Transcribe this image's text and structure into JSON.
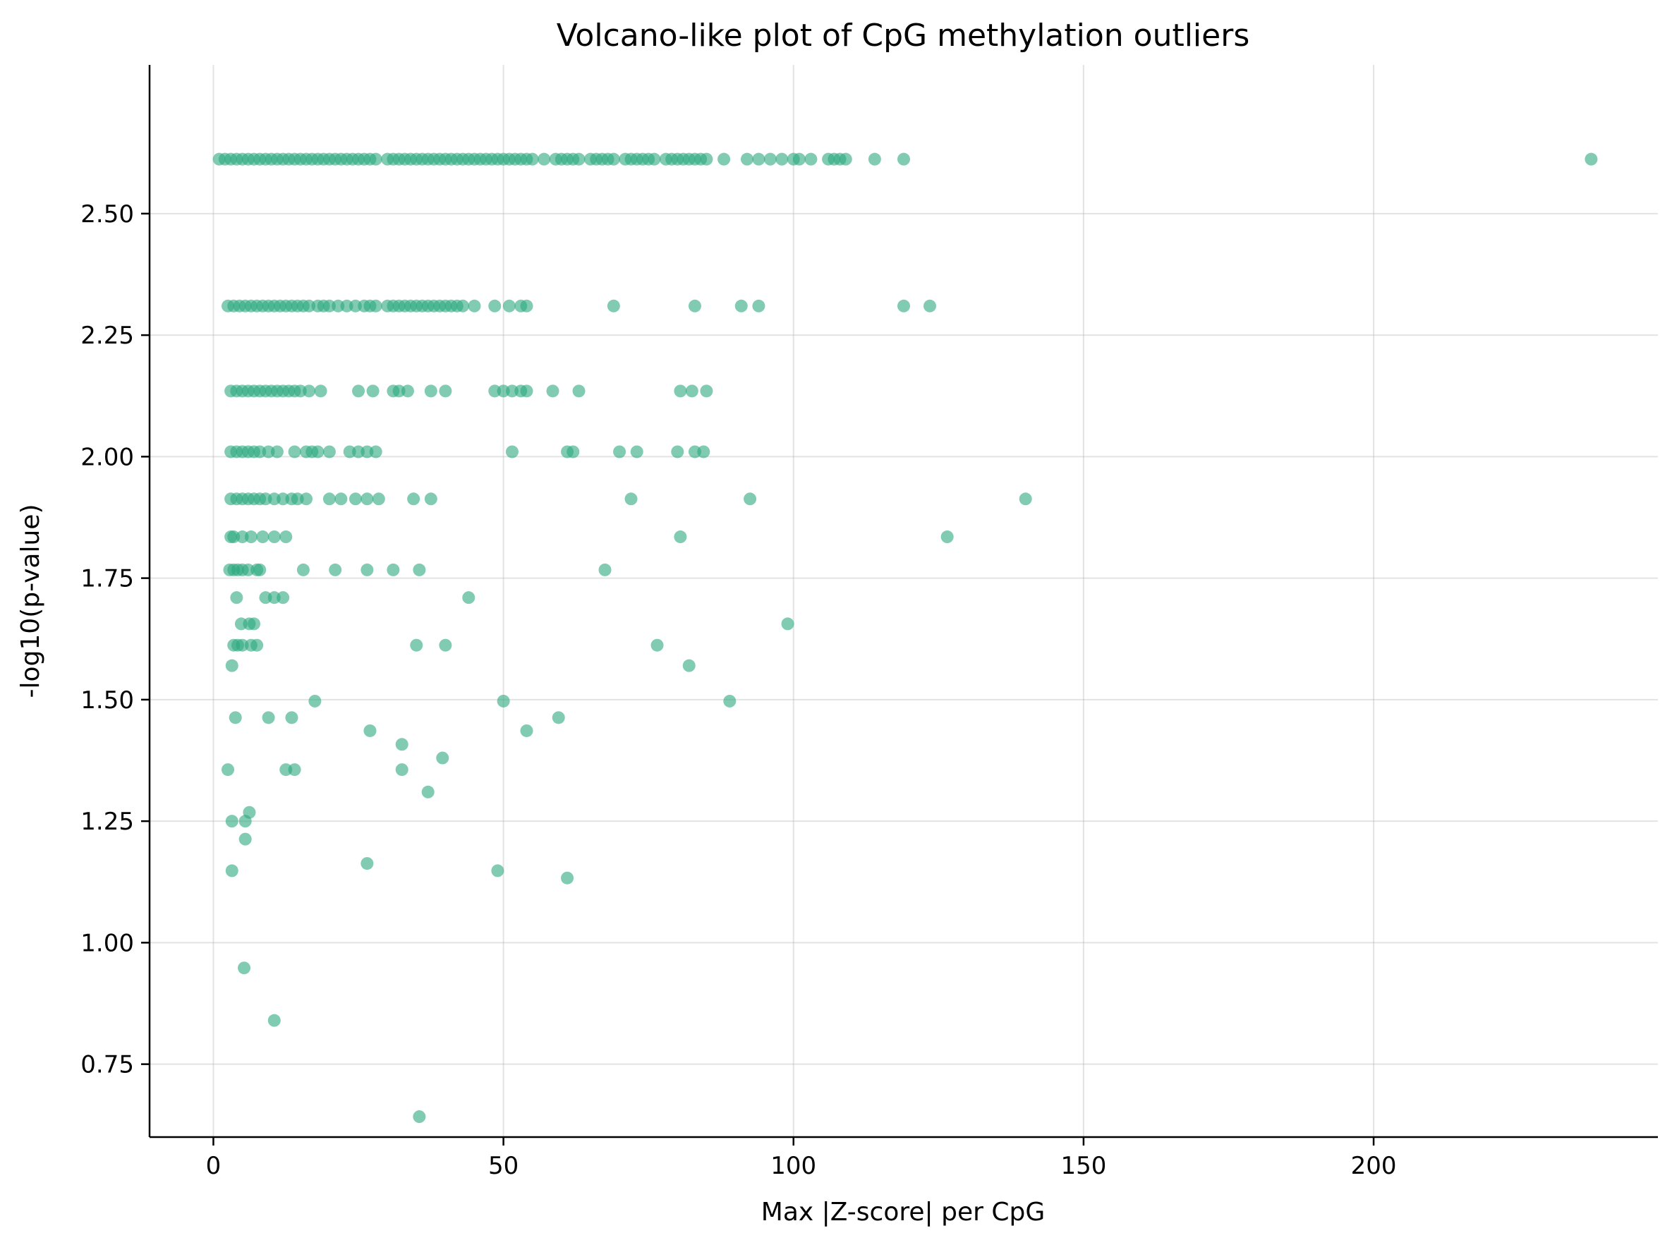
{
  "chart_data": {
    "type": "scatter",
    "title": "Volcano-like plot of CpG methylation outliers",
    "xlabel": "Max |Z-score| per CpG",
    "ylabel": "-log10(p-value)",
    "xlim": [
      -11,
      249
    ],
    "ylim": [
      0.6,
      2.806
    ],
    "xticks": [
      0,
      50,
      100,
      150,
      200
    ],
    "xtick_labels": [
      "0",
      "50",
      "100",
      "150",
      "200"
    ],
    "yticks": [
      0.75,
      1.0,
      1.25,
      1.5,
      1.75,
      2.0,
      2.25,
      2.5
    ],
    "ytick_labels": [
      "0.75",
      "1.00",
      "1.25",
      "1.50",
      "1.75",
      "2.00",
      "2.25",
      "2.50"
    ],
    "grid": true,
    "marker_color": "#2ca87f",
    "marker_alpha": 0.6,
    "series": [
      {
        "points": [
          [
            1,
            2.612
          ],
          [
            2,
            2.612
          ],
          [
            3,
            2.612
          ],
          [
            4,
            2.612
          ],
          [
            5,
            2.612
          ],
          [
            6,
            2.612
          ],
          [
            7,
            2.612
          ],
          [
            8,
            2.612
          ],
          [
            9,
            2.612
          ],
          [
            10,
            2.612
          ],
          [
            11,
            2.612
          ],
          [
            12,
            2.612
          ],
          [
            13,
            2.612
          ],
          [
            14,
            2.612
          ],
          [
            15,
            2.612
          ],
          [
            16,
            2.612
          ],
          [
            17,
            2.612
          ],
          [
            18,
            2.612
          ],
          [
            19,
            2.612
          ],
          [
            20,
            2.612
          ],
          [
            21,
            2.612
          ],
          [
            22,
            2.612
          ],
          [
            23,
            2.612
          ],
          [
            24,
            2.612
          ],
          [
            25,
            2.612
          ],
          [
            26,
            2.612
          ],
          [
            27,
            2.612
          ],
          [
            28,
            2.612
          ],
          [
            30,
            2.612
          ],
          [
            31,
            2.612
          ],
          [
            32,
            2.612
          ],
          [
            33,
            2.612
          ],
          [
            34,
            2.612
          ],
          [
            35,
            2.612
          ],
          [
            36,
            2.612
          ],
          [
            37,
            2.612
          ],
          [
            38,
            2.612
          ],
          [
            39,
            2.612
          ],
          [
            40,
            2.612
          ],
          [
            41,
            2.612
          ],
          [
            42,
            2.612
          ],
          [
            43,
            2.612
          ],
          [
            44,
            2.612
          ],
          [
            45,
            2.612
          ],
          [
            46,
            2.612
          ],
          [
            47,
            2.612
          ],
          [
            48,
            2.612
          ],
          [
            49,
            2.612
          ],
          [
            50,
            2.612
          ],
          [
            51,
            2.612
          ],
          [
            52,
            2.612
          ],
          [
            53,
            2.612
          ],
          [
            54,
            2.612
          ],
          [
            55,
            2.612
          ],
          [
            57,
            2.612
          ],
          [
            59,
            2.612
          ],
          [
            60,
            2.612
          ],
          [
            61,
            2.612
          ],
          [
            62,
            2.612
          ],
          [
            63,
            2.612
          ],
          [
            65,
            2.612
          ],
          [
            66,
            2.612
          ],
          [
            67,
            2.612
          ],
          [
            68,
            2.612
          ],
          [
            69,
            2.612
          ],
          [
            71,
            2.612
          ],
          [
            72,
            2.612
          ],
          [
            73,
            2.612
          ],
          [
            74,
            2.612
          ],
          [
            75,
            2.612
          ],
          [
            76,
            2.612
          ],
          [
            78,
            2.612
          ],
          [
            79,
            2.612
          ],
          [
            80,
            2.612
          ],
          [
            81,
            2.612
          ],
          [
            82,
            2.612
          ],
          [
            83,
            2.612
          ],
          [
            84,
            2.612
          ],
          [
            85,
            2.612
          ],
          [
            88,
            2.612
          ],
          [
            92,
            2.612
          ],
          [
            94,
            2.612
          ],
          [
            96,
            2.612
          ],
          [
            98,
            2.612
          ],
          [
            100,
            2.612
          ],
          [
            101,
            2.612
          ],
          [
            103,
            2.612
          ],
          [
            106,
            2.612
          ],
          [
            107,
            2.612
          ],
          [
            108,
            2.612
          ],
          [
            109,
            2.612
          ],
          [
            114,
            2.612
          ],
          [
            119,
            2.612
          ],
          [
            237.5,
            2.612
          ],
          [
            2.5,
            2.31
          ],
          [
            3.5,
            2.31
          ],
          [
            4.5,
            2.31
          ],
          [
            5.5,
            2.31
          ],
          [
            6.5,
            2.31
          ],
          [
            7.5,
            2.31
          ],
          [
            8.5,
            2.31
          ],
          [
            9.5,
            2.31
          ],
          [
            10.5,
            2.31
          ],
          [
            11.5,
            2.31
          ],
          [
            12.5,
            2.31
          ],
          [
            13.5,
            2.31
          ],
          [
            14.5,
            2.31
          ],
          [
            15.5,
            2.31
          ],
          [
            16.5,
            2.31
          ],
          [
            18,
            2.31
          ],
          [
            19,
            2.31
          ],
          [
            20,
            2.31
          ],
          [
            21.5,
            2.31
          ],
          [
            23,
            2.31
          ],
          [
            24.5,
            2.31
          ],
          [
            26,
            2.31
          ],
          [
            27,
            2.31
          ],
          [
            28,
            2.31
          ],
          [
            30,
            2.31
          ],
          [
            31,
            2.31
          ],
          [
            32,
            2.31
          ],
          [
            33,
            2.31
          ],
          [
            34,
            2.31
          ],
          [
            35,
            2.31
          ],
          [
            36,
            2.31
          ],
          [
            37,
            2.31
          ],
          [
            38,
            2.31
          ],
          [
            39,
            2.31
          ],
          [
            40,
            2.31
          ],
          [
            41,
            2.31
          ],
          [
            42,
            2.31
          ],
          [
            43,
            2.31
          ],
          [
            45,
            2.31
          ],
          [
            48.5,
            2.31
          ],
          [
            51,
            2.31
          ],
          [
            53,
            2.31
          ],
          [
            54,
            2.31
          ],
          [
            69,
            2.31
          ],
          [
            83,
            2.31
          ],
          [
            91,
            2.31
          ],
          [
            94,
            2.31
          ],
          [
            119,
            2.31
          ],
          [
            123.5,
            2.31
          ],
          [
            3,
            2.135
          ],
          [
            4,
            2.135
          ],
          [
            5,
            2.135
          ],
          [
            6,
            2.135
          ],
          [
            7,
            2.135
          ],
          [
            8,
            2.135
          ],
          [
            9,
            2.135
          ],
          [
            10,
            2.135
          ],
          [
            11,
            2.135
          ],
          [
            12,
            2.135
          ],
          [
            13,
            2.135
          ],
          [
            14,
            2.135
          ],
          [
            15,
            2.135
          ],
          [
            16.5,
            2.135
          ],
          [
            18.5,
            2.135
          ],
          [
            25,
            2.135
          ],
          [
            27.5,
            2.135
          ],
          [
            31,
            2.135
          ],
          [
            32,
            2.135
          ],
          [
            33.5,
            2.135
          ],
          [
            37.5,
            2.135
          ],
          [
            40,
            2.135
          ],
          [
            48.5,
            2.135
          ],
          [
            50,
            2.135
          ],
          [
            51.5,
            2.135
          ],
          [
            53,
            2.135
          ],
          [
            54,
            2.135
          ],
          [
            58.5,
            2.135
          ],
          [
            63,
            2.135
          ],
          [
            80.5,
            2.135
          ],
          [
            82.5,
            2.135
          ],
          [
            85,
            2.135
          ],
          [
            3,
            2.01
          ],
          [
            4,
            2.01
          ],
          [
            5,
            2.01
          ],
          [
            6,
            2.01
          ],
          [
            7,
            2.01
          ],
          [
            8,
            2.01
          ],
          [
            9.5,
            2.01
          ],
          [
            11,
            2.01
          ],
          [
            14,
            2.01
          ],
          [
            16,
            2.01
          ],
          [
            17,
            2.01
          ],
          [
            18,
            2.01
          ],
          [
            20,
            2.01
          ],
          [
            23.5,
            2.01
          ],
          [
            25,
            2.01
          ],
          [
            26.5,
            2.01
          ],
          [
            28,
            2.01
          ],
          [
            51.5,
            2.01
          ],
          [
            61,
            2.01
          ],
          [
            62,
            2.01
          ],
          [
            70,
            2.01
          ],
          [
            73,
            2.01
          ],
          [
            80,
            2.01
          ],
          [
            83,
            2.01
          ],
          [
            84.5,
            2.01
          ],
          [
            3,
            1.913
          ],
          [
            4,
            1.913
          ],
          [
            5,
            1.913
          ],
          [
            6,
            1.913
          ],
          [
            7,
            1.913
          ],
          [
            8,
            1.913
          ],
          [
            9,
            1.913
          ],
          [
            10.5,
            1.913
          ],
          [
            12,
            1.913
          ],
          [
            13.5,
            1.913
          ],
          [
            14.5,
            1.913
          ],
          [
            16,
            1.913
          ],
          [
            20,
            1.913
          ],
          [
            22,
            1.913
          ],
          [
            24.5,
            1.913
          ],
          [
            26.5,
            1.913
          ],
          [
            28.5,
            1.913
          ],
          [
            34.5,
            1.913
          ],
          [
            37.5,
            1.913
          ],
          [
            72,
            1.913
          ],
          [
            92.5,
            1.913
          ],
          [
            140,
            1.913
          ],
          [
            3,
            1.835
          ],
          [
            3.5,
            1.835
          ],
          [
            5,
            1.835
          ],
          [
            6.5,
            1.835
          ],
          [
            8.5,
            1.835
          ],
          [
            10.5,
            1.835
          ],
          [
            12.5,
            1.835
          ],
          [
            80.5,
            1.835
          ],
          [
            126.5,
            1.835
          ],
          [
            2.8,
            1.767
          ],
          [
            3.5,
            1.767
          ],
          [
            4.2,
            1.767
          ],
          [
            5,
            1.767
          ],
          [
            6,
            1.767
          ],
          [
            7.5,
            1.767
          ],
          [
            8,
            1.767
          ],
          [
            15.5,
            1.767
          ],
          [
            21,
            1.767
          ],
          [
            26.5,
            1.767
          ],
          [
            31,
            1.767
          ],
          [
            35.5,
            1.767
          ],
          [
            67.5,
            1.767
          ],
          [
            4,
            1.71
          ],
          [
            9,
            1.71
          ],
          [
            10.5,
            1.71
          ],
          [
            12,
            1.71
          ],
          [
            44,
            1.71
          ],
          [
            4.8,
            1.656
          ],
          [
            6.2,
            1.656
          ],
          [
            7,
            1.656
          ],
          [
            99,
            1.656
          ],
          [
            3.5,
            1.612
          ],
          [
            4.2,
            1.612
          ],
          [
            5,
            1.612
          ],
          [
            6.5,
            1.612
          ],
          [
            7.5,
            1.612
          ],
          [
            35,
            1.612
          ],
          [
            40,
            1.612
          ],
          [
            76.5,
            1.612
          ],
          [
            3.2,
            1.57
          ],
          [
            82,
            1.57
          ],
          [
            17.5,
            1.497
          ],
          [
            50,
            1.497
          ],
          [
            89,
            1.497
          ],
          [
            3.8,
            1.463
          ],
          [
            9.5,
            1.463
          ],
          [
            13.5,
            1.463
          ],
          [
            59.5,
            1.463
          ],
          [
            27,
            1.436
          ],
          [
            54,
            1.436
          ],
          [
            32.5,
            1.408
          ],
          [
            39.5,
            1.38
          ],
          [
            2.5,
            1.356
          ],
          [
            12.5,
            1.356
          ],
          [
            14,
            1.356
          ],
          [
            32.5,
            1.356
          ],
          [
            37,
            1.31
          ],
          [
            6.2,
            1.268
          ],
          [
            3.2,
            1.25
          ],
          [
            5.5,
            1.25
          ],
          [
            5.5,
            1.213
          ],
          [
            26.5,
            1.163
          ],
          [
            3.2,
            1.148
          ],
          [
            49,
            1.148
          ],
          [
            61,
            1.133
          ],
          [
            5.3,
            0.948
          ],
          [
            10.5,
            0.84
          ],
          [
            35.5,
            0.642
          ]
        ]
      }
    ]
  }
}
